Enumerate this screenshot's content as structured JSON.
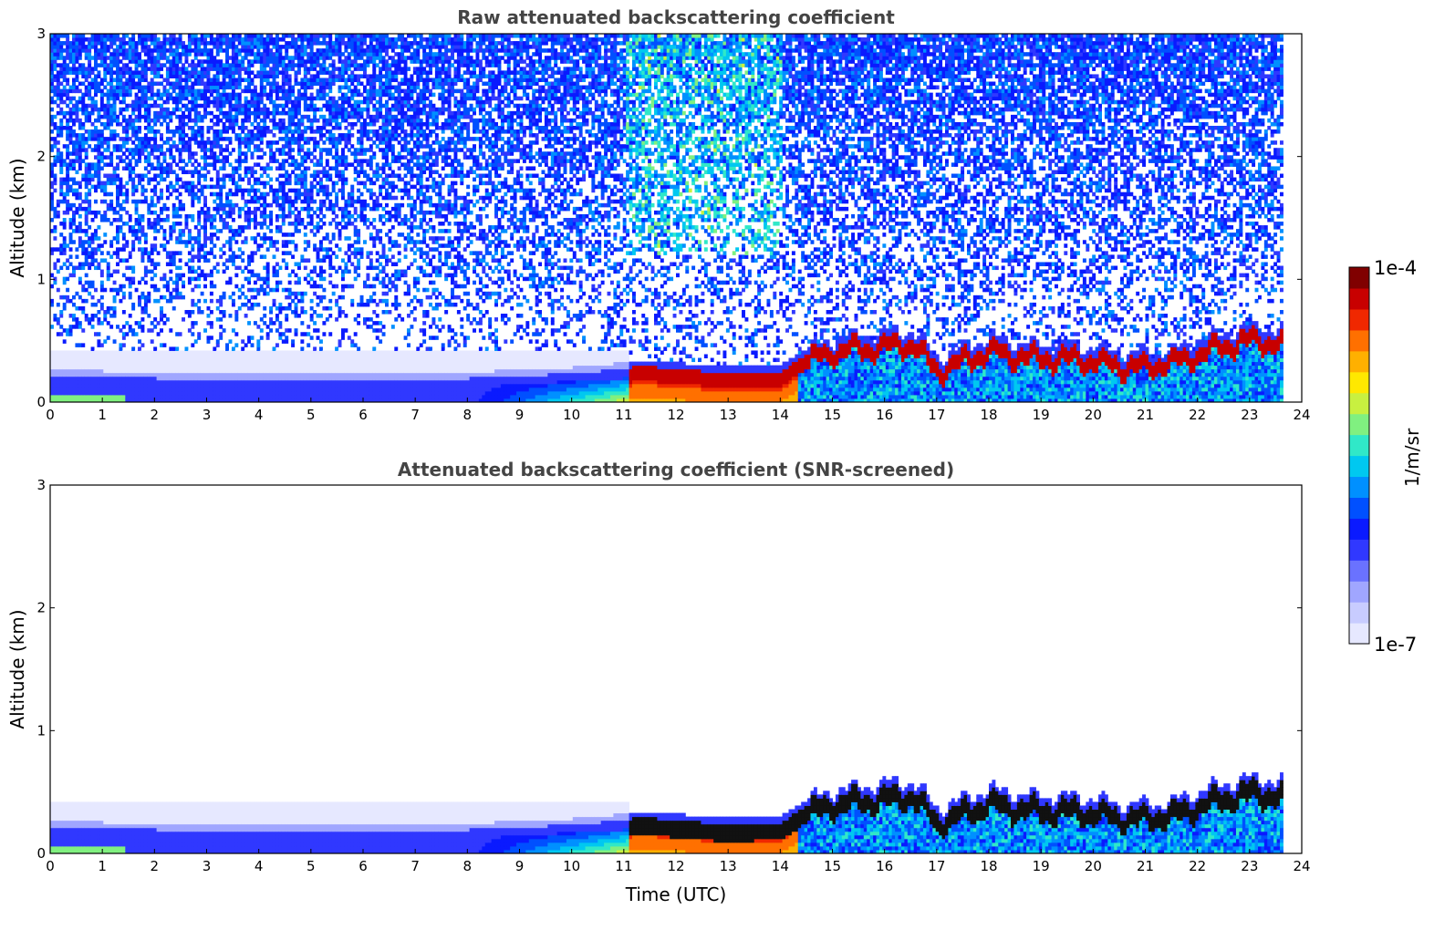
{
  "panels": [
    {
      "title": "Raw attenuated backscattering coefficient",
      "ylabel": "Altitude (km)",
      "xlabel": ""
    },
    {
      "title": "Attenuated backscattering coefficient (SNR-screened)",
      "ylabel": "Altitude (km)",
      "xlabel": "Time (UTC)"
    }
  ],
  "colorbar": {
    "label": "1/m/sr",
    "max_label": "1e-4",
    "min_label": "1e-7",
    "colors": [
      "#e6e8ff",
      "#c8ccff",
      "#a0a6ff",
      "#6a72ff",
      "#3038ff",
      "#0a1aff",
      "#0050ff",
      "#0090ff",
      "#00c8f0",
      "#30e8c8",
      "#80f080",
      "#c8f040",
      "#ffe800",
      "#ffb000",
      "#ff7000",
      "#f02800",
      "#c80000",
      "#800000"
    ]
  },
  "chart_data": [
    {
      "type": "heatmap",
      "title": "Raw attenuated backscattering coefficient",
      "xlabel": "",
      "ylabel": "Altitude (km)",
      "xlim": [
        0,
        24
      ],
      "ylim": [
        0,
        3
      ],
      "xticks": [
        0,
        1,
        2,
        3,
        4,
        5,
        6,
        7,
        8,
        9,
        10,
        11,
        12,
        13,
        14,
        15,
        16,
        17,
        18,
        19,
        20,
        21,
        22,
        23,
        24
      ],
      "yticks": [
        0,
        1,
        2,
        3
      ],
      "data_end_hour": 23.6,
      "boundary_layer_top_km": {
        "x": [
          0,
          2,
          4,
          6,
          8,
          10,
          11,
          11.3,
          13,
          14,
          14.5,
          15,
          15.5,
          16,
          16.5,
          17,
          17.5,
          18,
          18.5,
          19,
          19.5,
          20,
          20.5,
          21,
          21.5,
          22,
          22.5,
          23,
          23.6
        ],
        "y": [
          0.2,
          0.18,
          0.18,
          0.18,
          0.18,
          0.22,
          0.26,
          0.28,
          0.22,
          0.24,
          0.38,
          0.45,
          0.48,
          0.5,
          0.52,
          0.3,
          0.38,
          0.46,
          0.42,
          0.4,
          0.4,
          0.38,
          0.34,
          0.34,
          0.36,
          0.44,
          0.5,
          0.55,
          0.52
        ]
      }
    },
    {
      "type": "heatmap",
      "title": "Attenuated backscattering coefficient (SNR-screened)",
      "xlabel": "Time (UTC)",
      "ylabel": "Altitude (km)",
      "xlim": [
        0,
        24
      ],
      "ylim": [
        0,
        3
      ],
      "xticks": [
        0,
        1,
        2,
        3,
        4,
        5,
        6,
        7,
        8,
        9,
        10,
        11,
        12,
        13,
        14,
        15,
        16,
        17,
        18,
        19,
        20,
        21,
        22,
        23,
        24
      ],
      "yticks": [
        0,
        1,
        2,
        3
      ],
      "data_end_hour": 23.6
    }
  ]
}
